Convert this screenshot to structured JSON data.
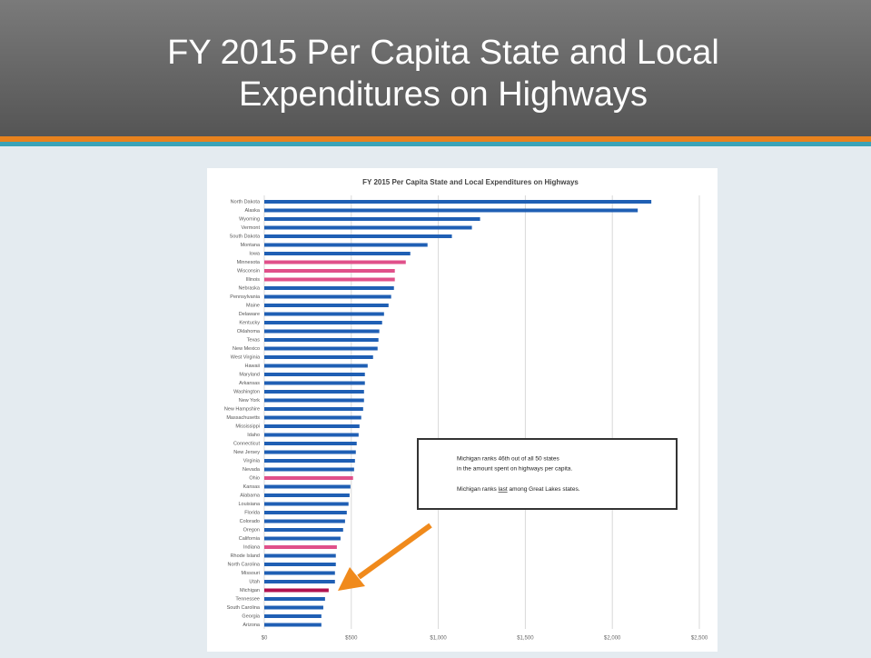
{
  "slide_title": [
    "FY 2015 Per Capita State and Local",
    "Expenditures on Highways"
  ],
  "chart_data": {
    "type": "bar",
    "orientation": "horizontal",
    "title": "FY 2015 Per Capita State and Local Expenditures on Highways",
    "categories": [
      "North Dakota",
      "Alaska",
      "Wyoming",
      "Vermont",
      "South Dakota",
      "Montana",
      "Iowa",
      "Minnesota",
      "Wisconsin",
      "Illinois",
      "Nebraska",
      "Pennsylvania",
      "Maine",
      "Delaware",
      "Kentucky",
      "Oklahoma",
      "Texas",
      "New Mexico",
      "West Virginia",
      "Hawaii",
      "Maryland",
      "Arkansas",
      "Washington",
      "New York",
      "New Hampshire",
      "Massachusetts",
      "Mississippi",
      "Idaho",
      "Connecticut",
      "New Jersey",
      "Virginia",
      "Nevada",
      "Ohio",
      "Kansas",
      "Alabama",
      "Louisiana",
      "Florida",
      "Colorado",
      "Oregon",
      "California",
      "Indiana",
      "Rhode Island",
      "North Carolina",
      "Missouri",
      "Utah",
      "Michigan",
      "Tennessee",
      "South Carolina",
      "Georgia",
      "Arizona"
    ],
    "values": [
      2224,
      2146,
      1240,
      1193,
      1078,
      938,
      839,
      813,
      750,
      750,
      745,
      729,
      714,
      688,
      677,
      661,
      656,
      651,
      625,
      594,
      578,
      578,
      573,
      573,
      568,
      557,
      547,
      542,
      531,
      526,
      521,
      516,
      510,
      495,
      490,
      484,
      474,
      464,
      453,
      438,
      417,
      411,
      411,
      406,
      406,
      370,
      349,
      339,
      328,
      328
    ],
    "colors": [
      "#1f5fb4",
      "#1f5fb4",
      "#1f5fb4",
      "#1f5fb4",
      "#1f5fb4",
      "#1f5fb4",
      "#1f5fb4",
      "#e0508a",
      "#e0508a",
      "#e0508a",
      "#1f5fb4",
      "#1f5fb4",
      "#1f5fb4",
      "#1f5fb4",
      "#1f5fb4",
      "#1f5fb4",
      "#1f5fb4",
      "#1f5fb4",
      "#1f5fb4",
      "#1f5fb4",
      "#1f5fb4",
      "#1f5fb4",
      "#1f5fb4",
      "#1f5fb4",
      "#1f5fb4",
      "#1f5fb4",
      "#1f5fb4",
      "#1f5fb4",
      "#1f5fb4",
      "#1f5fb4",
      "#1f5fb4",
      "#1f5fb4",
      "#e0508a",
      "#1f5fb4",
      "#1f5fb4",
      "#1f5fb4",
      "#1f5fb4",
      "#1f5fb4",
      "#1f5fb4",
      "#1f5fb4",
      "#e0508a",
      "#1f5fb4",
      "#1f5fb4",
      "#1f5fb4",
      "#1f5fb4",
      "#b0124f",
      "#1f5fb4",
      "#1f5fb4",
      "#1f5fb4",
      "#1f5fb4"
    ],
    "xlim": [
      0,
      2500
    ],
    "xticks": [
      {
        "value": 0,
        "label": "$0"
      },
      {
        "value": 500,
        "label": "$500"
      },
      {
        "value": 1000,
        "label": "$1,000"
      },
      {
        "value": 1500,
        "label": "$1,500"
      },
      {
        "value": 2000,
        "label": "$2,000"
      },
      {
        "value": 2500,
        "label": "$2,500"
      }
    ],
    "grid": true,
    "annotation": {
      "line1": "Michigan ranks 46th out of all 50 states",
      "line2": "in the amount spent on highways per capita.",
      "line3_start": "Michigan ranks ",
      "line3_emphasis": "last",
      "line3_end": " among Great Lakes states."
    }
  }
}
